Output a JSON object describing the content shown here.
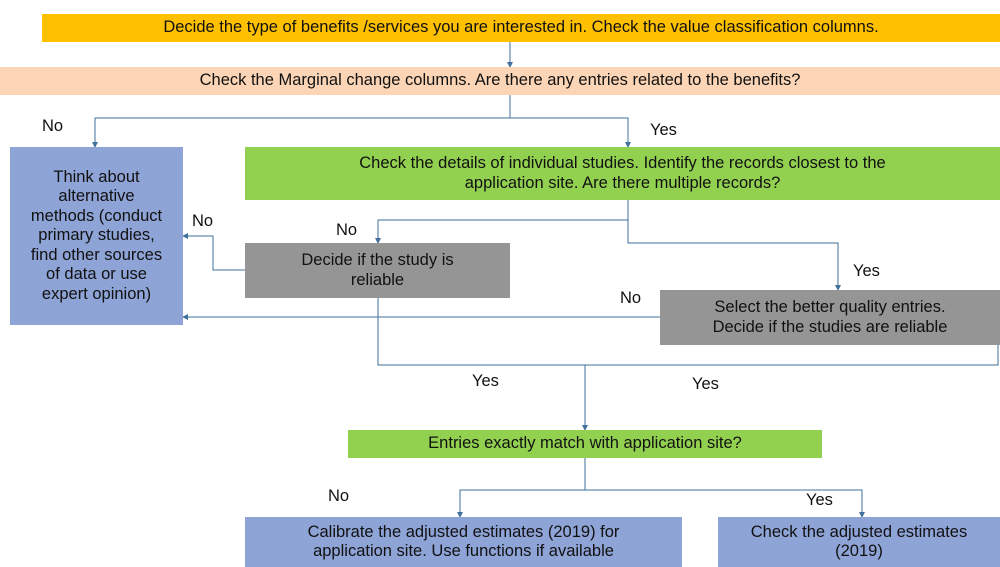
{
  "nodes": [
    {
      "lines": [
        "Decide the type of benefits /services you are interested in. Check the value classification columns."
      ]
    },
    {
      "lines": [
        "Check the Marginal change columns. Are there any entries related to the benefits?"
      ]
    },
    {
      "lines": [
        "Think about",
        "alternative",
        "methods (conduct",
        "primary studies,",
        "find other sources",
        "of data or use",
        "expert opinion)"
      ]
    },
    {
      "lines": [
        "Check the details of individual studies. Identify the records closest to the",
        "application site. Are there multiple records?"
      ]
    },
    {
      "lines": [
        "Decide if the study is",
        "reliable"
      ]
    },
    {
      "lines": [
        "Select the better quality entries.",
        "Decide if the studies are reliable"
      ]
    },
    {
      "lines": [
        "Entries exactly match with application site?"
      ]
    },
    {
      "lines": [
        "Calibrate the adjusted estimates (2019) for",
        "application site. Use functions if available"
      ]
    },
    {
      "lines": [
        "Check the adjusted estimates",
        "(2019)"
      ]
    }
  ],
  "edge_labels": [
    "No",
    "Yes",
    "No",
    "No",
    "Yes",
    "No",
    "Yes",
    "Yes",
    "No",
    "Yes"
  ]
}
